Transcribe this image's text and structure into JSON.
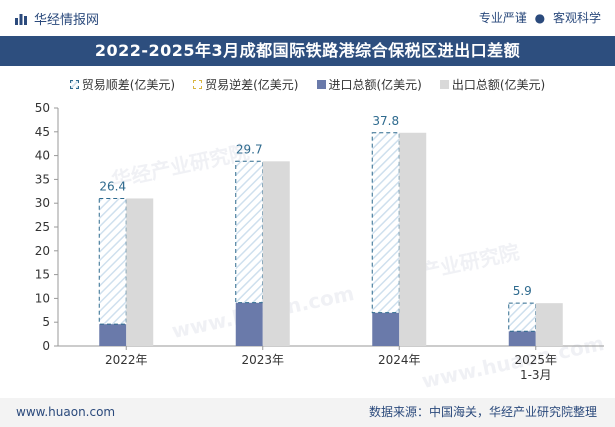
{
  "header": {
    "brand": "华经情报网",
    "slogan_left": "专业严谨",
    "slogan_sep": "●",
    "slogan_right": "客观科学"
  },
  "watermarks": [
    "华经产业研究院",
    "www.huaon.com"
  ],
  "chart_data": {
    "type": "bar",
    "title": "2022-2025年3月成都国际铁路港综合保税区进出口差额",
    "categories": [
      "2022年",
      "2023年",
      "2024年",
      "2025年\n1-3月"
    ],
    "series": [
      {
        "name": "贸易顺差(亿美元)",
        "values": [
          26.4,
          29.7,
          37.8,
          5.9
        ]
      },
      {
        "name": "贸易逆差(亿美元)",
        "values": [
          0,
          0,
          0,
          0
        ]
      },
      {
        "name": "进口总额(亿美元)",
        "values": [
          4.6,
          9.1,
          7.0,
          3.1
        ]
      },
      {
        "name": "出口总额(亿美元)",
        "values": [
          31.0,
          38.8,
          44.8,
          9.0
        ]
      }
    ],
    "data_labels": [
      "26.4",
      "29.7",
      "37.8",
      "5.9"
    ],
    "yticks": [
      0,
      5,
      10,
      15,
      20,
      25,
      30,
      35,
      40,
      45,
      50
    ],
    "ylim": [
      0,
      50
    ],
    "grid": false,
    "legend_position": "top-center",
    "colors": {
      "surplus_border": "#2e6a8e",
      "surplus_hatch": "#cfe0ee",
      "deficit_border": "#d9b640",
      "import": "#6a7aaa",
      "export": "#d9d9d9",
      "label": "#2e6a8e"
    }
  },
  "footer": {
    "url": "www.huaon.com",
    "source": "数据来源：中国海关，华经产业研究院整理"
  }
}
